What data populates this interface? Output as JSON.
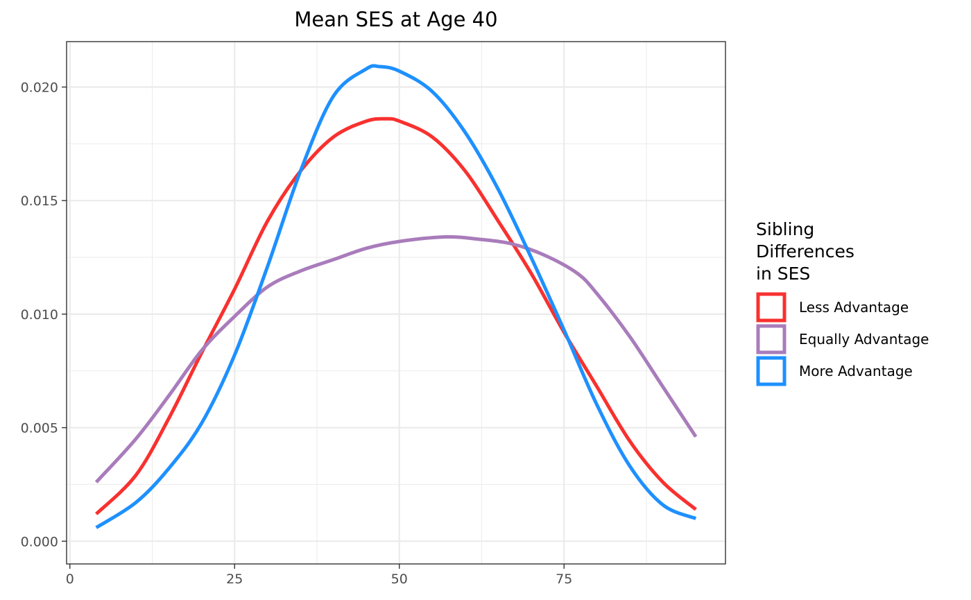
{
  "chart_data": {
    "type": "line",
    "title": "Mean SES at Age 40",
    "xlabel": "",
    "ylabel": "",
    "xlim": [
      -0.5,
      99.5
    ],
    "ylim": [
      -0.001,
      0.022
    ],
    "x_ticks": [
      0,
      25,
      50,
      75
    ],
    "x_tick_labels": [
      "0",
      "25",
      "50",
      "75"
    ],
    "y_ticks": [
      0.0,
      0.005,
      0.01,
      0.015,
      0.02
    ],
    "y_tick_labels": [
      "0.000",
      "0.005",
      "0.010",
      "0.015",
      "0.020"
    ],
    "grid": true,
    "legend": {
      "title_lines": [
        "Sibling",
        "Differences",
        "in SES"
      ],
      "placement": "right"
    },
    "series": [
      {
        "name": "Less Advantage",
        "color": "#f8312f",
        "x": [
          4,
          10,
          15,
          20,
          25,
          30,
          35,
          40,
          45,
          48,
          50,
          55,
          60,
          65,
          70,
          75,
          80,
          85,
          90,
          95
        ],
        "y": [
          0.0012,
          0.0029,
          0.0054,
          0.0083,
          0.0111,
          0.0141,
          0.0163,
          0.0178,
          0.0185,
          0.0186,
          0.0185,
          0.0178,
          0.0163,
          0.0141,
          0.0118,
          0.0092,
          0.0068,
          0.0044,
          0.0026,
          0.0014
        ]
      },
      {
        "name": "Equally Advantage",
        "color": "#a97cbb",
        "x": [
          4,
          10,
          15,
          20,
          25,
          30,
          35,
          40,
          45,
          50,
          57,
          62,
          67,
          72,
          77,
          80,
          85,
          90,
          95
        ],
        "y": [
          0.0026,
          0.0045,
          0.0064,
          0.0084,
          0.0099,
          0.0112,
          0.0119,
          0.0124,
          0.0129,
          0.0132,
          0.0134,
          0.0133,
          0.0131,
          0.0126,
          0.0118,
          0.0109,
          0.009,
          0.0068,
          0.0046
        ]
      },
      {
        "name": "More Advantage",
        "color": "#1e90ff",
        "x": [
          4,
          10,
          15,
          20,
          25,
          30,
          35,
          40,
          45,
          47,
          50,
          55,
          60,
          65,
          70,
          75,
          80,
          85,
          90,
          95
        ],
        "y": [
          0.0006,
          0.0017,
          0.0032,
          0.0052,
          0.0082,
          0.0121,
          0.0163,
          0.0196,
          0.0208,
          0.0209,
          0.0207,
          0.0198,
          0.018,
          0.0155,
          0.0125,
          0.0093,
          0.006,
          0.0033,
          0.0016,
          0.001
        ]
      }
    ]
  }
}
